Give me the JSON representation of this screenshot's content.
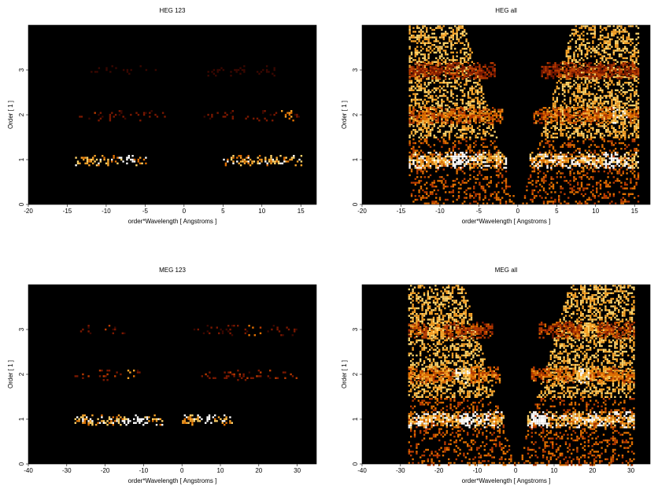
{
  "figure": {
    "colormap": [
      "#000000",
      "#3a0700",
      "#7a1800",
      "#b83a00",
      "#e06f00",
      "#f7a227",
      "#ffd36a",
      "#ffffff"
    ]
  },
  "chart_data": [
    {
      "type": "heatmap",
      "title": "HEG 123",
      "xlabel": "order*Wavelength [ Angstroms ]",
      "ylabel": "Order [ 1 ]",
      "xlim": [
        -20,
        17
      ],
      "ylim": [
        0,
        4
      ],
      "x_ticks": [
        "-20",
        "-15",
        "-10",
        "-5",
        "0",
        "5",
        "10",
        "15"
      ],
      "y_ticks": [
        "0",
        "1",
        "2",
        "3"
      ],
      "grid": false,
      "mode": "sparse",
      "bands": [
        {
          "order": 1,
          "x_ranges": [
            [
              -14,
              -5
            ],
            [
              5,
              15
            ]
          ],
          "intensity": 0.85,
          "hotspots": [
            -7.5
          ]
        },
        {
          "order": 2,
          "x_ranges": [
            [
              -13.5,
              -2.5
            ],
            [
              2.5,
              15
            ]
          ],
          "intensity": 0.35,
          "hotspots": [
            13
          ]
        },
        {
          "order": 3,
          "x_ranges": [
            [
              -12,
              -3.5
            ],
            [
              3,
              12
            ]
          ],
          "intensity": 0.22,
          "hotspots": []
        }
      ]
    },
    {
      "type": "heatmap",
      "title": "HEG all",
      "xlabel": "order*Wavelength [ Angstroms ]",
      "ylabel": "Order [ 1 ]",
      "xlim": [
        -20,
        17
      ],
      "ylim": [
        0,
        4
      ],
      "x_ticks": [
        "-20",
        "-15",
        "-10",
        "-5",
        "0",
        "5",
        "10",
        "15"
      ],
      "y_ticks": [
        "0",
        "1",
        "2",
        "3"
      ],
      "grid": false,
      "mode": "dense",
      "wedge_x_range": [
        -14,
        15.5
      ],
      "bands": [
        {
          "order": 1,
          "x_ranges": [
            [
              -14,
              -1.5
            ],
            [
              1.5,
              15.5
            ]
          ],
          "intensity": 0.95,
          "hotspots": [
            -7.5,
            12
          ]
        },
        {
          "order": 2,
          "x_ranges": [
            [
              -14,
              -2
            ],
            [
              2,
              15.5
            ]
          ],
          "intensity": 0.6,
          "hotspots": [
            13
          ]
        },
        {
          "order": 3,
          "x_ranges": [
            [
              -14,
              -3
            ],
            [
              3,
              15.5
            ]
          ],
          "intensity": 0.45,
          "hotspots": []
        }
      ]
    },
    {
      "type": "heatmap",
      "title": "MEG 123",
      "xlabel": "order*Wavelength [ Angstroms ]",
      "ylabel": "Order [ 1 ]",
      "xlim": [
        -40,
        35
      ],
      "ylim": [
        0,
        4
      ],
      "x_ticks": [
        "-40",
        "-30",
        "-20",
        "-10",
        "0",
        "10",
        "20",
        "30"
      ],
      "y_ticks": [
        "0",
        "1",
        "2",
        "3"
      ],
      "grid": false,
      "mode": "sparse",
      "bands": [
        {
          "order": 1,
          "x_ranges": [
            [
              -28,
              -5
            ],
            [
              0,
              13
            ]
          ],
          "intensity": 0.9,
          "hotspots": [
            -13,
            -11,
            6
          ]
        },
        {
          "order": 2,
          "x_ranges": [
            [
              -28,
              -10
            ],
            [
              5,
              30
            ]
          ],
          "intensity": 0.4,
          "hotspots": [
            -14
          ]
        },
        {
          "order": 3,
          "x_ranges": [
            [
              -28,
              -15
            ],
            [
              3,
              30
            ]
          ],
          "intensity": 0.3,
          "hotspots": [
            -21,
            19
          ]
        }
      ]
    },
    {
      "type": "heatmap",
      "title": "MEG all",
      "xlabel": "order*Wavelength [ Angstroms ]",
      "ylabel": "Order [ 1 ]",
      "xlim": [
        -40,
        35
      ],
      "ylim": [
        0,
        4
      ],
      "x_ticks": [
        "-40",
        "-30",
        "-20",
        "-10",
        "0",
        "10",
        "20",
        "30"
      ],
      "y_ticks": [
        "0",
        "1",
        "2",
        "3"
      ],
      "grid": false,
      "mode": "dense",
      "wedge_x_range": [
        -28,
        31
      ],
      "bands": [
        {
          "order": 1,
          "x_ranges": [
            [
              -28,
              -3
            ],
            [
              3,
              31
            ]
          ],
          "intensity": 0.95,
          "hotspots": [
            -13,
            6
          ]
        },
        {
          "order": 2,
          "x_ranges": [
            [
              -28,
              -4
            ],
            [
              4,
              31
            ]
          ],
          "intensity": 0.65,
          "hotspots": [
            -14,
            17
          ]
        },
        {
          "order": 3,
          "x_ranges": [
            [
              -28,
              -6
            ],
            [
              6,
              31
            ]
          ],
          "intensity": 0.5,
          "hotspots": [
            -21,
            19
          ]
        }
      ]
    }
  ]
}
